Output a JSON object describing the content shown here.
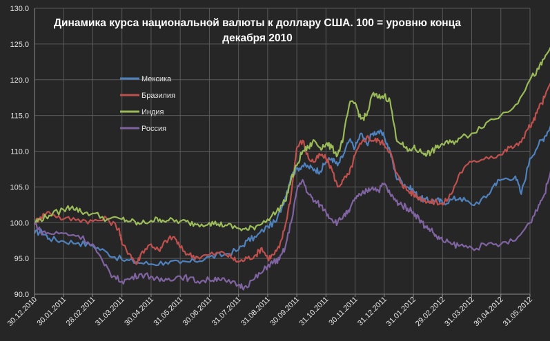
{
  "chart_data": {
    "type": "line",
    "title_lines": [
      "Динамика курса национальной валюты к доллару США. 100 = уровню конца",
      "декабря 2010"
    ],
    "xlabel": "",
    "ylabel": "",
    "ylim": [
      90,
      130
    ],
    "y_ticks": [
      "90.0",
      "95.0",
      "100.0",
      "105.0",
      "110.0",
      "115.0",
      "120.0",
      "125.0",
      "130.0"
    ],
    "x_tick_labels": [
      "30.12.2010",
      "30.01.2011",
      "28.02.2011",
      "31.03.2011",
      "30.04.2011",
      "31.05.2011",
      "30.06.2011",
      "31.07.2011",
      "31.08.2011",
      "30.09.2011",
      "31.10.2011",
      "30.11.2011",
      "31.12.2011",
      "31.01.2012",
      "29.02.2012",
      "31.03.2012",
      "30.04.2012",
      "31.05.2012"
    ],
    "grid": true,
    "legend_position": "upper-left-inside",
    "series": [
      {
        "name": "Мексика",
        "color": "#4f81bd",
        "points": [
          [
            0,
            98.5
          ],
          [
            0.25,
            98.8
          ],
          [
            0.5,
            97.8
          ],
          [
            1,
            97.4
          ],
          [
            1.5,
            97.2
          ],
          [
            2,
            96.8
          ],
          [
            2.5,
            95.8
          ],
          [
            3,
            94.8
          ],
          [
            3.5,
            94.5
          ],
          [
            4,
            94.2
          ],
          [
            4.5,
            94.5
          ],
          [
            5,
            94.3
          ],
          [
            5.5,
            94.6
          ],
          [
            6,
            95.2
          ],
          [
            6.5,
            95.5
          ],
          [
            7,
            96.2
          ],
          [
            7.3,
            97.5
          ],
          [
            7.6,
            98
          ],
          [
            8,
            99.5
          ],
          [
            8.3,
            100.2
          ],
          [
            8.6,
            103.5
          ],
          [
            8.8,
            106.5
          ],
          [
            9,
            107.5
          ],
          [
            9.2,
            108
          ],
          [
            9.4,
            107.8
          ],
          [
            9.6,
            107.5
          ],
          [
            9.8,
            107.2
          ],
          [
            10,
            108.5
          ],
          [
            10.2,
            109
          ],
          [
            10.4,
            108
          ],
          [
            10.6,
            109.5
          ],
          [
            10.8,
            111.5
          ],
          [
            11,
            110.5
          ],
          [
            11.2,
            112.5
          ],
          [
            11.4,
            111
          ],
          [
            11.6,
            112.5
          ],
          [
            11.8,
            112.8
          ],
          [
            12,
            112
          ],
          [
            12.2,
            110
          ],
          [
            12.4,
            106.5
          ],
          [
            12.6,
            105.8
          ],
          [
            12.8,
            105
          ],
          [
            13,
            104.5
          ],
          [
            13.2,
            103.5
          ],
          [
            13.4,
            103.2
          ],
          [
            13.6,
            103
          ],
          [
            13.8,
            103.2
          ],
          [
            14,
            102.8
          ],
          [
            14.3,
            103.2
          ],
          [
            14.6,
            103.5
          ],
          [
            15,
            102.5
          ],
          [
            15.5,
            103.5
          ],
          [
            15.8,
            105.5
          ],
          [
            16,
            106
          ],
          [
            16.5,
            106.5
          ],
          [
            16.7,
            104
          ],
          [
            17,
            109
          ],
          [
            17.3,
            111
          ],
          [
            17.5,
            112
          ],
          [
            17.7,
            113.5
          ],
          [
            17.8,
            113.8
          ]
        ]
      },
      {
        "name": "Бразилия",
        "color": "#c0504d",
        "points": [
          [
            0,
            100
          ],
          [
            0.2,
            100.8
          ],
          [
            0.5,
            101.5
          ],
          [
            1,
            100.5
          ],
          [
            1.5,
            100.5
          ],
          [
            2,
            100.2
          ],
          [
            2.5,
            100.5
          ],
          [
            2.9,
            99.2
          ],
          [
            3,
            97
          ],
          [
            3.3,
            95.5
          ],
          [
            3.5,
            94.2
          ],
          [
            3.7,
            96
          ],
          [
            4,
            97
          ],
          [
            4.3,
            96
          ],
          [
            4.5,
            97.5
          ],
          [
            4.8,
            98
          ],
          [
            5,
            96.5
          ],
          [
            5.3,
            95.5
          ],
          [
            5.6,
            95.2
          ],
          [
            6,
            95.5
          ],
          [
            6.5,
            95.8
          ],
          [
            6.8,
            95
          ],
          [
            7,
            94.5
          ],
          [
            7.3,
            95
          ],
          [
            7.6,
            95.5
          ],
          [
            7.8,
            96.5
          ],
          [
            8,
            95
          ],
          [
            8.2,
            95.5
          ],
          [
            8.4,
            96.5
          ],
          [
            8.6,
            99.5
          ],
          [
            8.8,
            103.8
          ],
          [
            9,
            110.5
          ],
          [
            9.2,
            111.5
          ],
          [
            9.4,
            109
          ],
          [
            9.6,
            108.5
          ],
          [
            9.8,
            109.5
          ],
          [
            10,
            109
          ],
          [
            10.2,
            107.5
          ],
          [
            10.4,
            105
          ],
          [
            10.6,
            106
          ],
          [
            10.8,
            106.8
          ],
          [
            11,
            109.5
          ],
          [
            11.2,
            111
          ],
          [
            11.4,
            112
          ],
          [
            11.6,
            111.5
          ],
          [
            11.8,
            111.5
          ],
          [
            12,
            111
          ],
          [
            12.2,
            110
          ],
          [
            12.4,
            107
          ],
          [
            12.6,
            105.5
          ],
          [
            12.8,
            104.5
          ],
          [
            13,
            104
          ],
          [
            13.2,
            103.5
          ],
          [
            13.4,
            103.2
          ],
          [
            13.6,
            102.8
          ],
          [
            13.8,
            103
          ],
          [
            14,
            102.5
          ],
          [
            14.3,
            104
          ],
          [
            14.6,
            107
          ],
          [
            15,
            108.5
          ],
          [
            15.5,
            109.2
          ],
          [
            16,
            109.5
          ],
          [
            16.3,
            110.5
          ],
          [
            16.6,
            110.8
          ],
          [
            16.9,
            113
          ],
          [
            17.1,
            114
          ],
          [
            17.3,
            116
          ],
          [
            17.5,
            117.5
          ],
          [
            17.7,
            119.5
          ],
          [
            17.8,
            121.5
          ]
        ]
      },
      {
        "name": "Индия",
        "color": "#9bbb59",
        "points": [
          [
            0,
            100
          ],
          [
            0.2,
            100.5
          ],
          [
            0.5,
            101
          ],
          [
            1,
            101.8
          ],
          [
            1.3,
            102.3
          ],
          [
            1.6,
            101.5
          ],
          [
            2,
            101.3
          ],
          [
            2.5,
            100.5
          ],
          [
            3,
            100.5
          ],
          [
            3.3,
            100.2
          ],
          [
            3.6,
            99.8
          ],
          [
            4,
            100.3
          ],
          [
            4.3,
            100.5
          ],
          [
            4.6,
            100.3
          ],
          [
            5,
            100.2
          ],
          [
            5.3,
            100
          ],
          [
            5.6,
            99.8
          ],
          [
            6,
            100
          ],
          [
            6.3,
            99.8
          ],
          [
            6.6,
            99.6
          ],
          [
            7,
            99.2
          ],
          [
            7.3,
            99
          ],
          [
            7.6,
            99.5
          ],
          [
            8,
            100.5
          ],
          [
            8.3,
            101.5
          ],
          [
            8.6,
            103
          ],
          [
            8.8,
            106
          ],
          [
            9,
            108
          ],
          [
            9.2,
            110
          ],
          [
            9.4,
            110.5
          ],
          [
            9.6,
            111.5
          ],
          [
            9.8,
            110.5
          ],
          [
            10,
            111
          ],
          [
            10.2,
            110.5
          ],
          [
            10.4,
            109.5
          ],
          [
            10.6,
            112
          ],
          [
            10.8,
            116.5
          ],
          [
            11,
            116.8
          ],
          [
            11.2,
            114.5
          ],
          [
            11.4,
            115
          ],
          [
            11.6,
            118
          ],
          [
            11.8,
            117.5
          ],
          [
            12,
            117.8
          ],
          [
            12.2,
            117
          ],
          [
            12.4,
            112
          ],
          [
            12.6,
            111
          ],
          [
            12.8,
            110
          ],
          [
            13,
            110.5
          ],
          [
            13.2,
            110
          ],
          [
            13.4,
            109.7
          ],
          [
            13.6,
            109.8
          ],
          [
            13.8,
            110.5
          ],
          [
            14,
            111
          ],
          [
            14.3,
            111.2
          ],
          [
            14.6,
            111.8
          ],
          [
            15,
            112.5
          ],
          [
            15.5,
            114
          ],
          [
            16,
            115
          ],
          [
            16.5,
            116.5
          ],
          [
            17,
            120
          ],
          [
            17.3,
            121.5
          ],
          [
            17.5,
            123
          ],
          [
            17.7,
            124.5
          ],
          [
            17.8,
            125.2
          ]
        ]
      },
      {
        "name": "Россия",
        "color": "#8064a2",
        "points": [
          [
            0,
            100
          ],
          [
            0.2,
            98.8
          ],
          [
            0.5,
            98.5
          ],
          [
            1,
            98.5
          ],
          [
            1.5,
            98.2
          ],
          [
            2,
            97
          ],
          [
            2.4,
            94
          ],
          [
            2.7,
            92.5
          ],
          [
            3,
            91.8
          ],
          [
            3.3,
            92.2
          ],
          [
            3.6,
            92.8
          ],
          [
            4,
            92.5
          ],
          [
            4.3,
            91.8
          ],
          [
            4.6,
            92.2
          ],
          [
            5,
            92.5
          ],
          [
            5.3,
            92.2
          ],
          [
            5.6,
            91.8
          ],
          [
            6,
            92
          ],
          [
            6.3,
            92.3
          ],
          [
            6.6,
            91.7
          ],
          [
            7,
            91.3
          ],
          [
            7.2,
            91
          ],
          [
            7.5,
            92
          ],
          [
            7.8,
            93
          ],
          [
            8,
            94
          ],
          [
            8.2,
            94.5
          ],
          [
            8.4,
            94.8
          ],
          [
            8.6,
            96.5
          ],
          [
            8.8,
            100
          ],
          [
            9,
            104.5
          ],
          [
            9.2,
            106
          ],
          [
            9.4,
            104
          ],
          [
            9.6,
            103
          ],
          [
            9.8,
            102.5
          ],
          [
            10,
            101.5
          ],
          [
            10.2,
            100.5
          ],
          [
            10.4,
            100
          ],
          [
            10.6,
            101
          ],
          [
            10.8,
            101.5
          ],
          [
            11,
            103.5
          ],
          [
            11.2,
            103.8
          ],
          [
            11.4,
            104.5
          ],
          [
            11.6,
            105
          ],
          [
            11.8,
            104.5
          ],
          [
            12,
            105.5
          ],
          [
            12.2,
            104
          ],
          [
            12.4,
            103
          ],
          [
            12.6,
            102.5
          ],
          [
            12.8,
            102
          ],
          [
            13,
            101.5
          ],
          [
            13.2,
            100.5
          ],
          [
            13.4,
            99.5
          ],
          [
            13.6,
            99
          ],
          [
            13.8,
            98
          ],
          [
            14,
            97.5
          ],
          [
            14.3,
            97
          ],
          [
            14.6,
            96.8
          ],
          [
            15,
            96.5
          ],
          [
            15.5,
            96.8
          ],
          [
            16,
            97
          ],
          [
            16.5,
            97.5
          ],
          [
            17,
            100
          ],
          [
            17.3,
            102.5
          ],
          [
            17.5,
            104
          ],
          [
            17.7,
            107
          ],
          [
            17.8,
            111
          ]
        ]
      }
    ]
  }
}
